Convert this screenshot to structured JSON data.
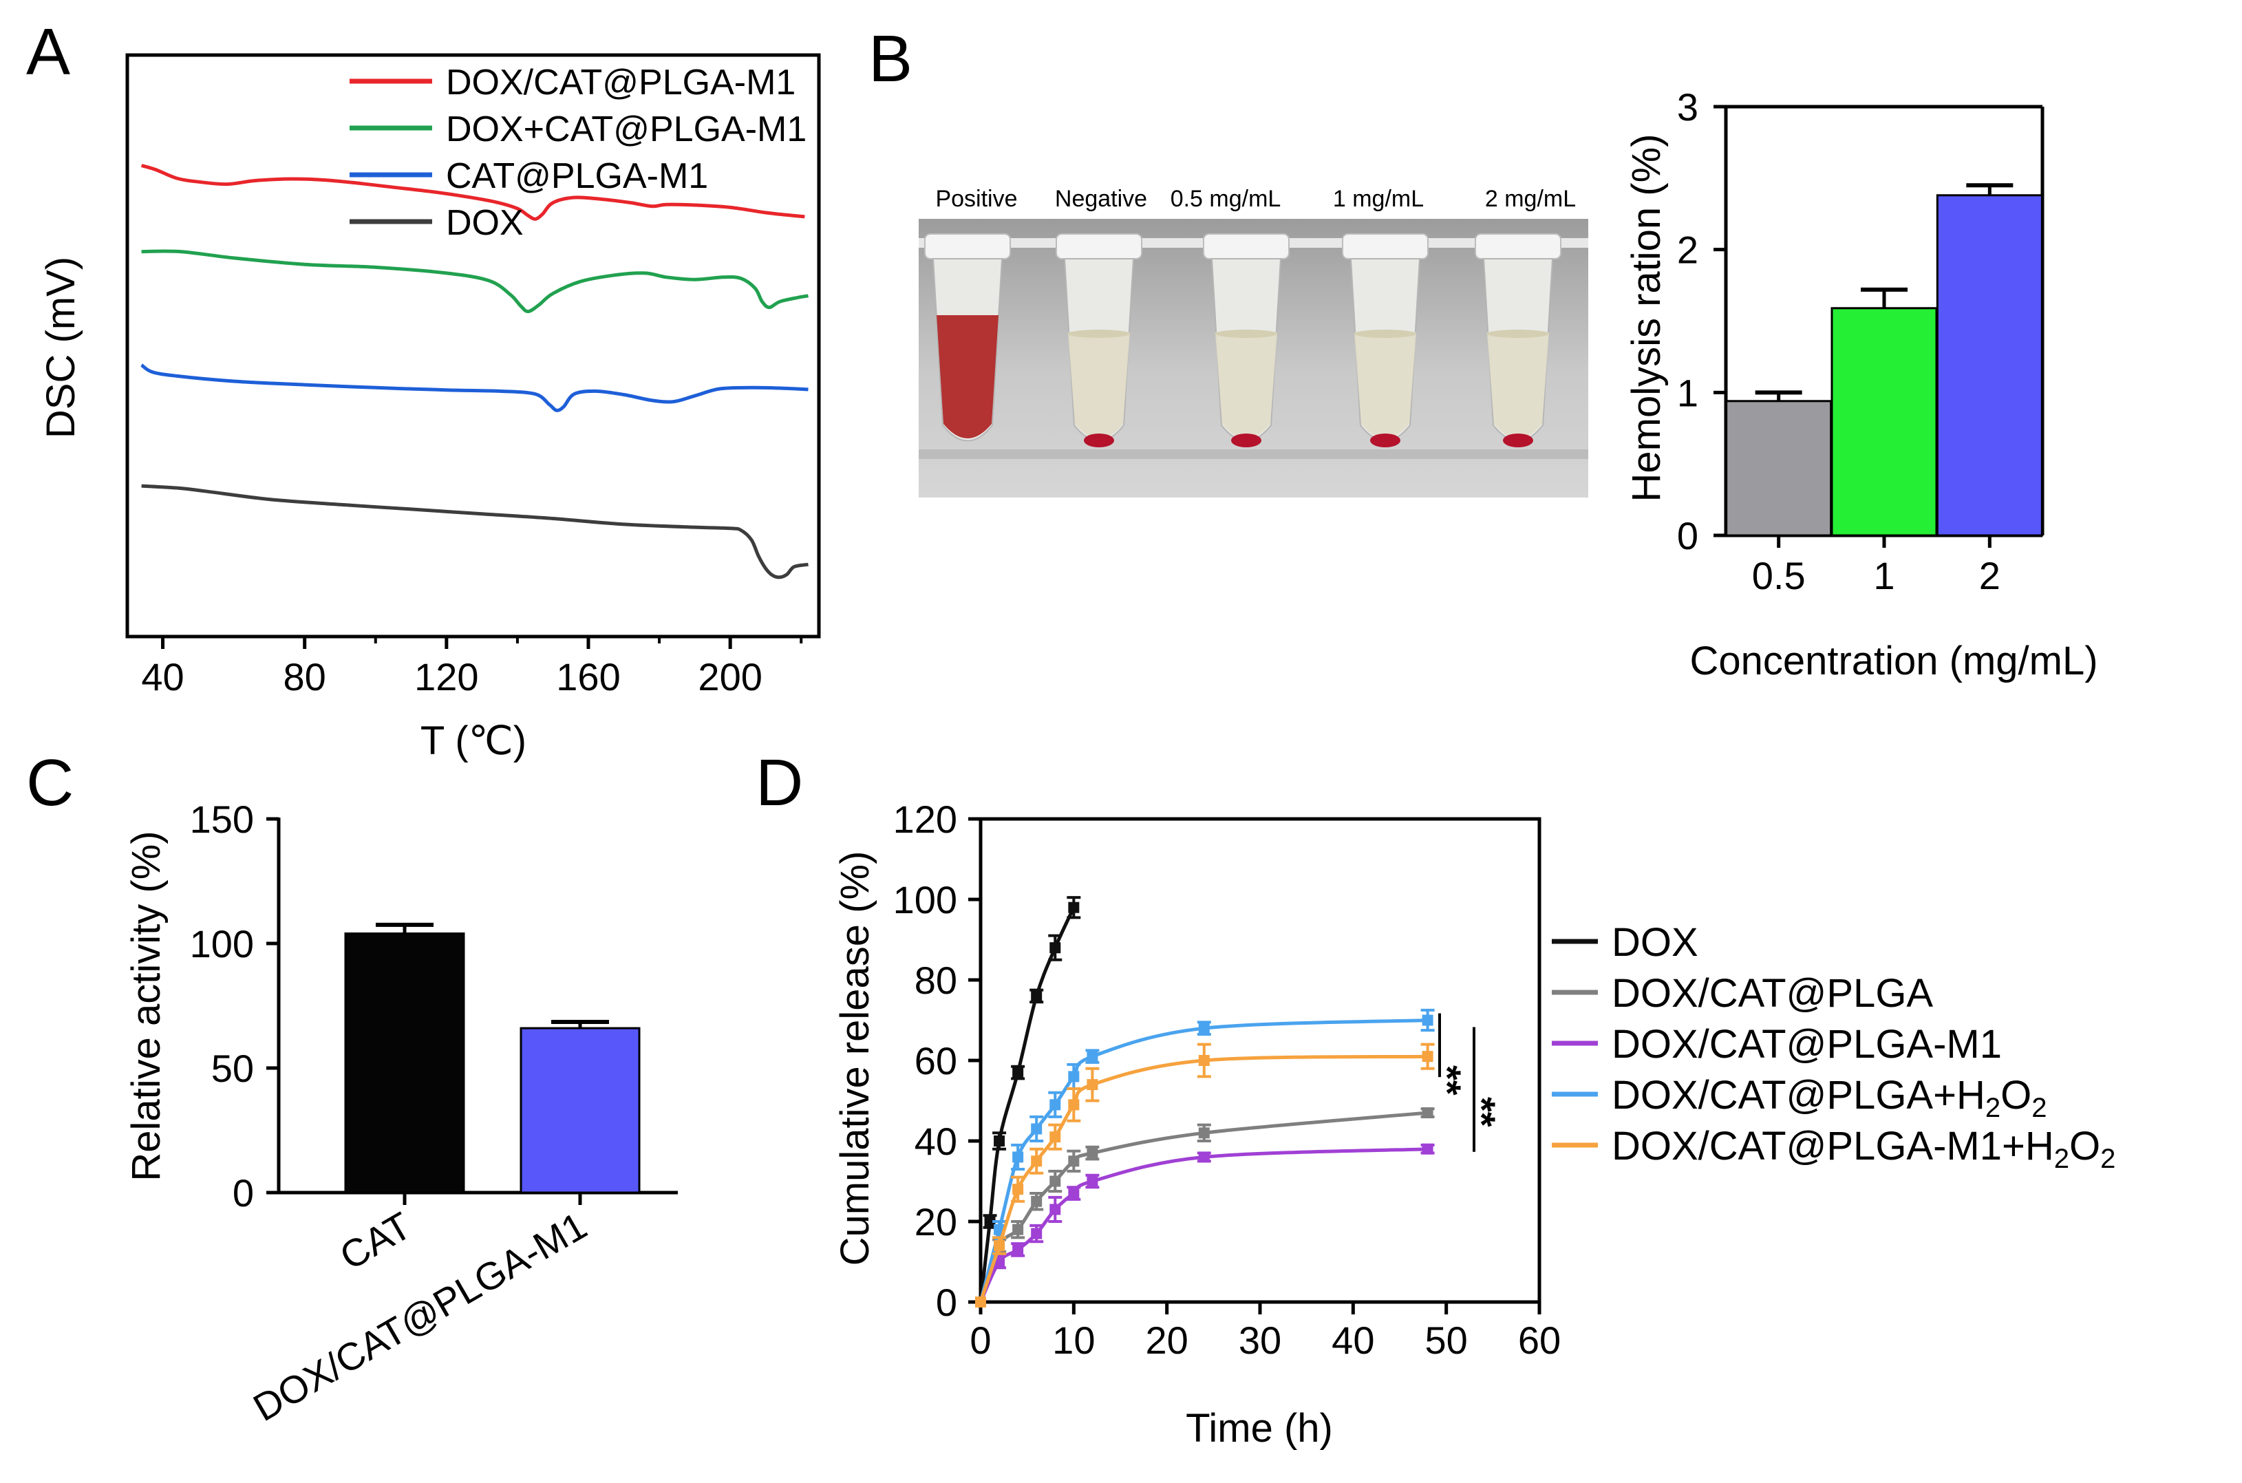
{
  "panels": {
    "A": {
      "letter": "A"
    },
    "B": {
      "letter": "B"
    },
    "C": {
      "letter": "C"
    },
    "D": {
      "letter": "D"
    }
  },
  "photo": {
    "labels": [
      "Positive",
      "Negative",
      "0.5 mg/mL",
      "1 mg/mL",
      "2 mg/mL"
    ],
    "tube_fill_colors": [
      "#b02828",
      "#e0dcc8",
      "#e2ddca",
      "#e2ddca",
      "#e2ddca"
    ],
    "pellet_color": "#b5122b"
  },
  "chart_data": [
    {
      "panel": "A",
      "type": "line",
      "title": "",
      "xlabel": "T (℃)",
      "ylabel": "DSC (mV)",
      "xlim": [
        30,
        225
      ],
      "x_ticks": [
        "40",
        "80",
        "120",
        "160",
        "200"
      ],
      "ylim": [
        0,
        100
      ],
      "y_ticks_shown": false,
      "legend_position": "top-right",
      "series": [
        {
          "name": "DOX/CAT@PLGA-M1",
          "color": "#e8262b",
          "points": [
            [
              34,
              81
            ],
            [
              38,
              80.3
            ],
            [
              44,
              78.8
            ],
            [
              50,
              78.2
            ],
            [
              58,
              77.8
            ],
            [
              66,
              78.4
            ],
            [
              76,
              78.7
            ],
            [
              86,
              78.5
            ],
            [
              96,
              77.9
            ],
            [
              106,
              77.2
            ],
            [
              116,
              76.5
            ],
            [
              126,
              75.6
            ],
            [
              134,
              74.7
            ],
            [
              140,
              73.6
            ],
            [
              143,
              72.4
            ],
            [
              145,
              71.8
            ],
            [
              147,
              72.6
            ],
            [
              150,
              74.6
            ],
            [
              156,
              75.5
            ],
            [
              164,
              75.2
            ],
            [
              172,
              74.6
            ],
            [
              178,
              74.0
            ],
            [
              182,
              74.3
            ],
            [
              190,
              74.2
            ],
            [
              200,
              73.8
            ],
            [
              210,
              72.9
            ],
            [
              216,
              72.5
            ],
            [
              221,
              72.2
            ]
          ]
        },
        {
          "name": "DOX+CAT@PLGA-M1",
          "color": "#21a14f",
          "points": [
            [
              34,
              66.2
            ],
            [
              45,
              66.2
            ],
            [
              60,
              65.1
            ],
            [
              80,
              64.0
            ],
            [
              100,
              63.5
            ],
            [
              120,
              62.5
            ],
            [
              132,
              61.2
            ],
            [
              138,
              58.8
            ],
            [
              141,
              56.8
            ],
            [
              143,
              55.9
            ],
            [
              146,
              57.0
            ],
            [
              150,
              59.0
            ],
            [
              158,
              61.1
            ],
            [
              168,
              62.2
            ],
            [
              176,
              62.5
            ],
            [
              182,
              61.8
            ],
            [
              190,
              61.4
            ],
            [
              198,
              61.8
            ],
            [
              203,
              61.6
            ],
            [
              207,
              59.9
            ],
            [
              209,
              57.6
            ],
            [
              211,
              56.6
            ],
            [
              214,
              57.6
            ],
            [
              219,
              58.3
            ],
            [
              222,
              58.6
            ]
          ]
        },
        {
          "name": "CAT@PLGA-M1",
          "color": "#1e5fd8",
          "points": [
            [
              34,
              46.7
            ],
            [
              37,
              45.5
            ],
            [
              44,
              44.8
            ],
            [
              60,
              43.9
            ],
            [
              80,
              43.3
            ],
            [
              100,
              42.8
            ],
            [
              120,
              42.4
            ],
            [
              135,
              42.2
            ],
            [
              145,
              41.7
            ],
            [
              149,
              39.9
            ],
            [
              151,
              38.9
            ],
            [
              153,
              39.5
            ],
            [
              156,
              41.7
            ],
            [
              162,
              42.2
            ],
            [
              170,
              41.6
            ],
            [
              178,
              40.6
            ],
            [
              184,
              40.4
            ],
            [
              190,
              41.4
            ],
            [
              197,
              42.6
            ],
            [
              206,
              42.8
            ],
            [
              215,
              42.7
            ],
            [
              222,
              42.5
            ]
          ]
        },
        {
          "name": "DOX",
          "color": "#3d3d3d",
          "points": [
            [
              34,
              25.9
            ],
            [
              45,
              25.5
            ],
            [
              52,
              25.0
            ],
            [
              70,
              23.6
            ],
            [
              90,
              22.7
            ],
            [
              110,
              21.9
            ],
            [
              130,
              21.1
            ],
            [
              150,
              20.3
            ],
            [
              170,
              19.3
            ],
            [
              190,
              18.8
            ],
            [
              200,
              18.6
            ],
            [
              203,
              18.3
            ],
            [
              206,
              16.6
            ],
            [
              208,
              13.8
            ],
            [
              210,
              11.7
            ],
            [
              212,
              10.5
            ],
            [
              214,
              10.2
            ],
            [
              216,
              10.7
            ],
            [
              218,
              12.0
            ],
            [
              222,
              12.4
            ]
          ]
        }
      ]
    },
    {
      "panel": "B",
      "type": "bar",
      "title": "",
      "xlabel": "Concentration (mg/mL)",
      "ylabel": "Hemolysis ration (%)",
      "categories": [
        "0.5",
        "1",
        "2"
      ],
      "values": [
        0.94,
        1.59,
        2.38
      ],
      "errors": [
        0.06,
        0.13,
        0.07
      ],
      "colors": [
        "#9a9a9f",
        "#25ef35",
        "#5757fa"
      ],
      "ylim": [
        0,
        3
      ],
      "y_ticks": [
        "0",
        "1",
        "2",
        "3"
      ]
    },
    {
      "panel": "C",
      "type": "bar",
      "title": "",
      "xlabel": "",
      "ylabel": "Relative activity (%)",
      "categories": [
        "CAT",
        "DOX/CAT@PLGA-M1"
      ],
      "values": [
        104,
        66
      ],
      "errors": [
        3.5,
        2.5
      ],
      "colors": [
        "#050505",
        "#5757fa"
      ],
      "ylim": [
        0,
        150
      ],
      "y_ticks": [
        "0",
        "50",
        "100",
        "150"
      ]
    },
    {
      "panel": "D",
      "type": "line",
      "title": "",
      "xlabel": "Time (h)",
      "ylabel": "Cumulative release (%)",
      "xlim": [
        0,
        60
      ],
      "x_ticks": [
        "0",
        "10",
        "20",
        "30",
        "40",
        "50",
        "60"
      ],
      "ylim": [
        0,
        120
      ],
      "y_ticks": [
        "0",
        "20",
        "40",
        "60",
        "80",
        "100",
        "120"
      ],
      "legend_position": "right",
      "significance": [
        {
          "label": "**",
          "between": [
            "DOX/CAT@PLGA+H2O2",
            "DOX/CAT@PLGA-M1+H2O2"
          ]
        },
        {
          "label": "**",
          "between": [
            "DOX/CAT@PLGA+H2O2",
            "DOX/CAT@PLGA-M1"
          ]
        }
      ],
      "series": [
        {
          "name": "DOX",
          "label_main": "DOX",
          "sub": "",
          "tail": "",
          "color": "#101010",
          "x": [
            0,
            1,
            2,
            4,
            6,
            8,
            10
          ],
          "y": [
            0,
            20,
            40,
            57,
            76,
            88,
            98
          ],
          "err": [
            0,
            1.5,
            2,
            1.5,
            1.5,
            3,
            2.5
          ]
        },
        {
          "name": "DOX/CAT@PLGA",
          "label_main": "DOX/CAT@PLGA",
          "sub": "",
          "tail": "",
          "color": "#7f7f7f",
          "x": [
            0,
            2,
            4,
            6,
            8,
            10,
            12,
            24,
            48
          ],
          "y": [
            0,
            14,
            18,
            25,
            30,
            35,
            37,
            42,
            47
          ],
          "err": [
            0,
            1.5,
            2,
            2,
            2.5,
            2.5,
            1.5,
            2,
            1
          ]
        },
        {
          "name": "DOX/CAT@PLGA-M1",
          "label_main": "DOX/CAT@PLGA-M1",
          "sub": "",
          "tail": "",
          "color": "#a040d4",
          "x": [
            0,
            2,
            4,
            6,
            8,
            10,
            12,
            24,
            48
          ],
          "y": [
            0,
            10,
            13,
            17,
            23,
            27,
            30,
            36,
            38
          ],
          "err": [
            0,
            1.5,
            1.5,
            2,
            3,
            1.5,
            1.5,
            1,
            1
          ]
        },
        {
          "name": "DOX/CAT@PLGA+H2O2",
          "label_main": "DOX/CAT@PLGA+H",
          "sub": "2",
          "tail": "O",
          "sub2": "2",
          "color": "#4aa3ee",
          "x": [
            0,
            2,
            4,
            6,
            8,
            10,
            12,
            24,
            48
          ],
          "y": [
            0,
            18,
            36,
            43,
            49,
            56,
            61,
            68,
            70
          ],
          "err": [
            0,
            2,
            3,
            3,
            3,
            3,
            1.5,
            1.5,
            2.5
          ]
        },
        {
          "name": "DOX/CAT@PLGA-M1+H2O2",
          "label_main": "DOX/CAT@PLGA-M1+H",
          "sub": "2",
          "tail": "O",
          "sub2": "2",
          "color": "#f6a23e",
          "x": [
            0,
            2,
            4,
            6,
            8,
            10,
            12,
            24,
            48
          ],
          "y": [
            0,
            14,
            28,
            35,
            41,
            49,
            54,
            60,
            61
          ],
          "err": [
            0,
            2,
            3,
            3,
            3,
            4,
            4,
            4,
            3
          ]
        }
      ]
    }
  ]
}
